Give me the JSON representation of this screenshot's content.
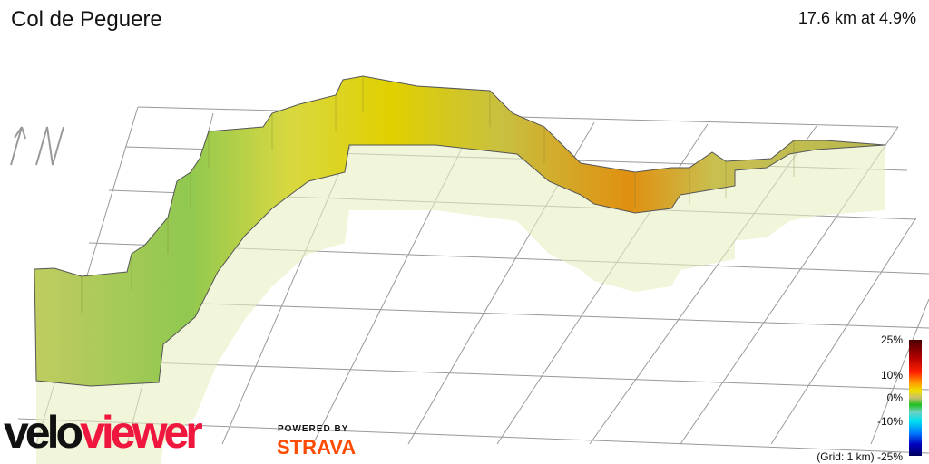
{
  "header": {
    "title": "Col de Peguere",
    "stats": "17.6 km at 4.9%"
  },
  "legend": {
    "labels": [
      "25%",
      "10%",
      "0%",
      "-10%",
      "-25%"
    ],
    "grid_note": "(Grid: 1 km)",
    "colors": [
      "#4a0000",
      "#ff2000",
      "#f0e000",
      "#20c020",
      "#00e0f0",
      "#0000c0",
      "#000060"
    ]
  },
  "compass": {
    "icon": "north-arrow-icon",
    "label": "N"
  },
  "branding": {
    "logo_part1": "velo",
    "logo_part2": "viewer",
    "powered_by": "POWERED BY",
    "strava": "STRAVA",
    "colors": {
      "velo": "#111111",
      "viewer": "#f0173e",
      "strava": "#fc4c02"
    }
  },
  "route": {
    "wall_color": "#c8cc50",
    "steep_color": "#e08a10",
    "flat_color": "#88c050"
  }
}
